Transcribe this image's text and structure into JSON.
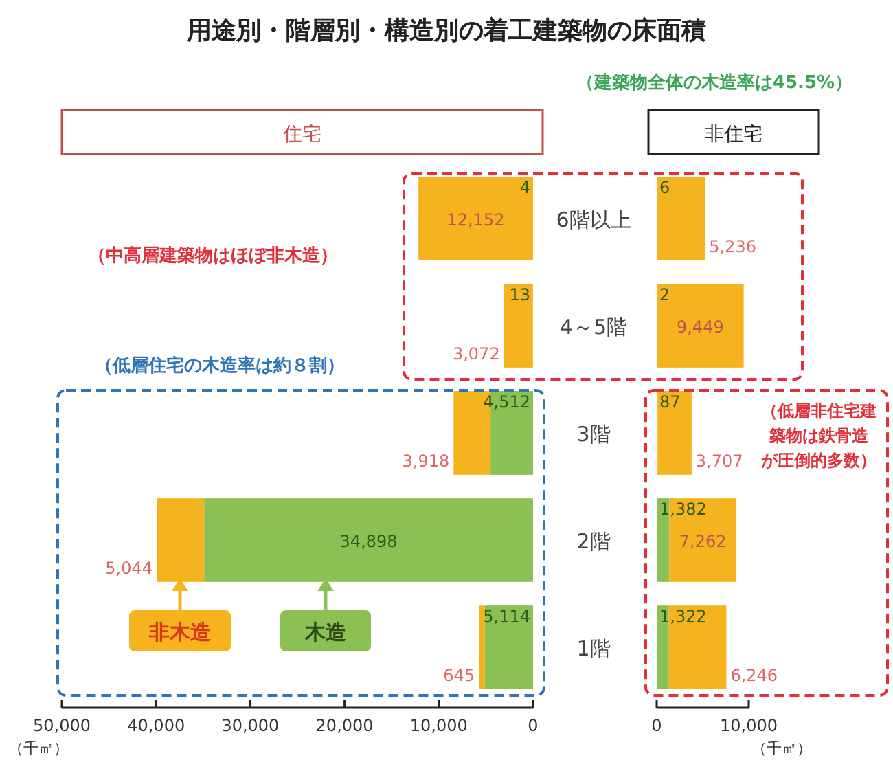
{
  "chart_data": [
    {
      "type": "bar",
      "orientation": "horizontal",
      "stacked": true,
      "title": "用途別・階層別・構造別の着工建築物の床面積",
      "subtitle": "住宅",
      "xlabel": "（千㎡）",
      "categories": [
        "6階以上",
        "4～5階",
        "3階",
        "2階",
        "1階"
      ],
      "series": [
        {
          "name": "木造",
          "color": "#8bc153",
          "values": [
            4,
            13,
            4512,
            34898,
            5114
          ],
          "value_labels": [
            "4",
            "13",
            "4,512",
            "34,898",
            "5,114"
          ]
        },
        {
          "name": "非木造",
          "color": "#f5b41e",
          "values": [
            12152,
            3072,
            3918,
            5044,
            645
          ],
          "value_labels": [
            "12,152",
            "3,072",
            "3,918",
            "5,044",
            "645"
          ]
        }
      ],
      "xlim": [
        50000,
        0
      ],
      "xticks": [
        {
          "value": 50000,
          "label": "50,000"
        },
        {
          "value": 40000,
          "label": "40,000"
        },
        {
          "value": 30000,
          "label": "30,000"
        },
        {
          "value": 20000,
          "label": "20,000"
        },
        {
          "value": 10000,
          "label": "10,000"
        },
        0
      ],
      "legend": "bottom left",
      "annotations": [
        "（建築物全体の木造率は45.5%）",
        "（中高層建築物はほぼ非木造）",
        "（低層住宅の木造率は約８割）"
      ]
    },
    {
      "type": "bar",
      "orientation": "horizontal",
      "stacked": true,
      "title": "非住宅",
      "xlabel": "（千㎡）",
      "categories": [
        null,
        null,
        null,
        null,
        null
      ],
      "series": [
        {
          "color": "#8bc153",
          "values": [
            6,
            2,
            87,
            1382,
            1322
          ],
          "value_labels": [
            "6",
            "2",
            "87",
            "1,382",
            "1,322"
          ]
        },
        {
          "color": "#f5b41e",
          "values": [
            5236,
            9449,
            3707,
            7262,
            6246
          ],
          "value_labels": [
            "5,236",
            "9,449",
            "3,707",
            "7,262",
            "6,246"
          ]
        }
      ],
      "xlim": [
        0,
        10000
      ],
      "xticks": [
        0,
        {
          "value": 10000,
          "label": "10,000"
        }
      ],
      "tick_labels": "x",
      "annotations": [
        "（低層非住宅建築物は鉄骨造が圧倒的多数）"
      ]
    }
  ]
}
